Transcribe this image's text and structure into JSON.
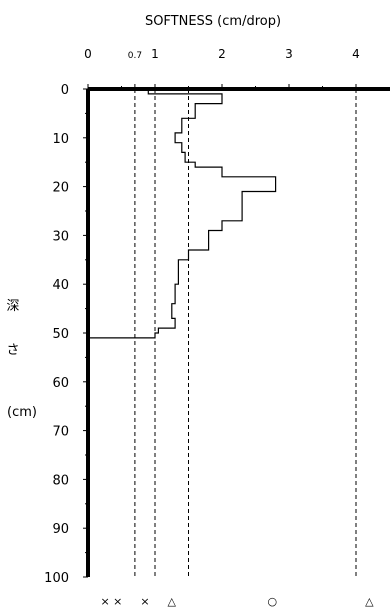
{
  "chart_data": {
    "type": "line",
    "title": "SOFTNESS (cm/drop)",
    "ylabel_chars": [
      "深",
      "さ",
      "(cm)"
    ],
    "x_ticks": [
      {
        "value": 0,
        "label": "0"
      },
      {
        "value": 0.7,
        "label": "0.7"
      },
      {
        "value": 1,
        "label": "1"
      },
      {
        "value": 2,
        "label": "2"
      },
      {
        "value": 3,
        "label": "3"
      },
      {
        "value": 4,
        "label": "4"
      }
    ],
    "y_ticks": [
      0,
      10,
      20,
      30,
      40,
      50,
      60,
      70,
      80,
      90,
      100
    ],
    "xlim": [
      0,
      4.3
    ],
    "ylim": [
      0,
      100
    ],
    "y_inverted": true,
    "reference_lines_x": [
      0.7,
      1.0,
      1.5,
      4.0
    ],
    "category_markers": [
      {
        "x": 0.35,
        "label": "× ×"
      },
      {
        "x": 0.85,
        "label": "×"
      },
      {
        "x": 1.25,
        "label": "△"
      },
      {
        "x": 2.75,
        "label": "○"
      },
      {
        "x": 4.2,
        "label": "△"
      }
    ],
    "series": [
      {
        "points": [
          [
            0.9,
            0
          ],
          [
            0.9,
            1
          ],
          [
            2.0,
            1
          ],
          [
            2.0,
            3
          ],
          [
            1.6,
            3
          ],
          [
            1.6,
            6
          ],
          [
            1.4,
            6
          ],
          [
            1.4,
            9
          ],
          [
            1.3,
            9
          ],
          [
            1.3,
            11
          ],
          [
            1.4,
            11
          ],
          [
            1.4,
            13
          ],
          [
            1.45,
            13
          ],
          [
            1.45,
            15
          ],
          [
            1.6,
            15
          ],
          [
            1.6,
            16
          ],
          [
            2.0,
            16
          ],
          [
            2.0,
            18
          ],
          [
            2.8,
            18
          ],
          [
            2.8,
            21
          ],
          [
            2.3,
            21
          ],
          [
            2.3,
            27
          ],
          [
            2.0,
            27
          ],
          [
            2.0,
            29
          ],
          [
            1.8,
            29
          ],
          [
            1.8,
            33
          ],
          [
            1.5,
            33
          ],
          [
            1.5,
            35
          ],
          [
            1.35,
            35
          ],
          [
            1.35,
            40
          ],
          [
            1.3,
            40
          ],
          [
            1.3,
            44
          ],
          [
            1.25,
            44
          ],
          [
            1.25,
            47
          ],
          [
            1.3,
            47
          ],
          [
            1.3,
            49
          ],
          [
            1.05,
            49
          ],
          [
            1.05,
            50
          ],
          [
            1.0,
            50
          ],
          [
            1.0,
            51
          ],
          [
            0.0,
            51
          ]
        ]
      }
    ]
  }
}
